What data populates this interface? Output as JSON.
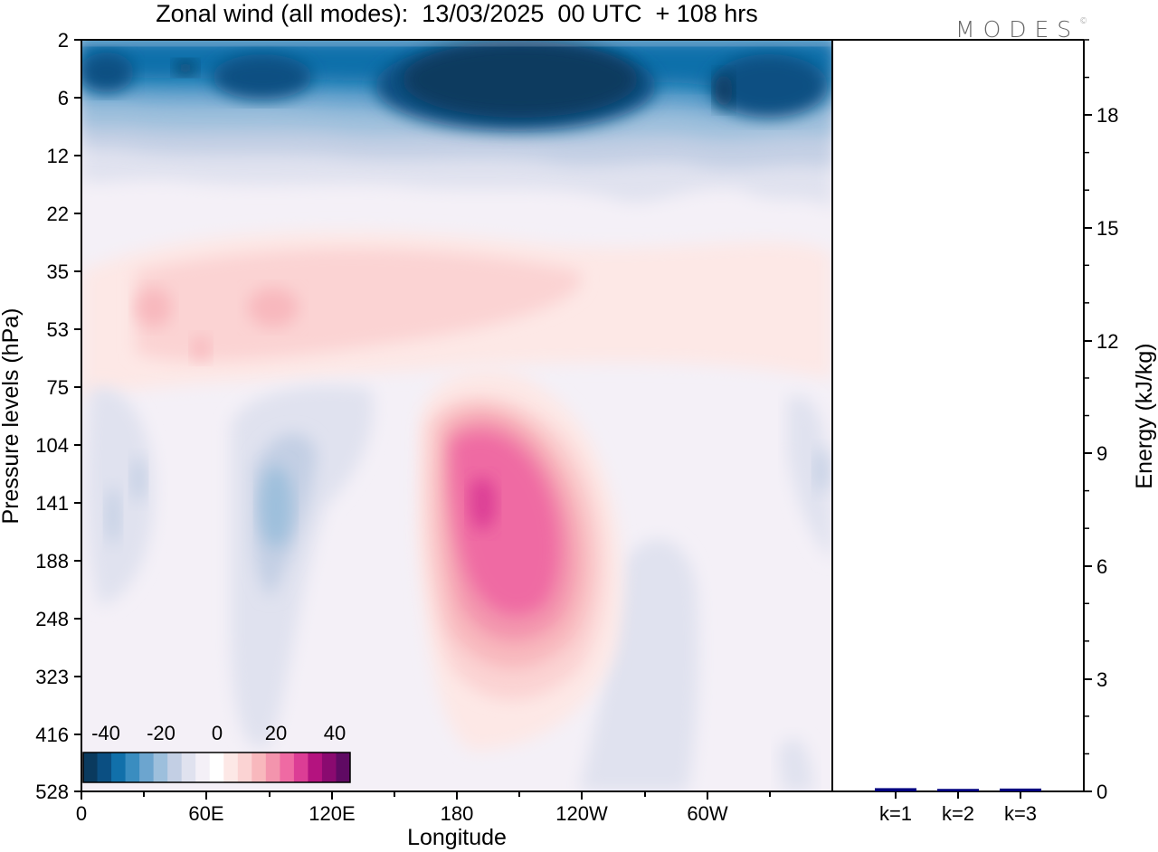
{
  "header": {
    "title": "Zonal wind (all modes):  13/03/2025  00 UTC  + 108 hrs",
    "logo": "MODES",
    "logo_mark": "©"
  },
  "chart_data": [
    {
      "type": "heatmap",
      "title": "Zonal wind (all modes):  13/03/2025  00 UTC  + 108 hrs",
      "xlabel": "Longitude",
      "ylabel": "Pressure levels (hPa)",
      "x_ticks": [
        "0",
        "60E",
        "120E",
        "180",
        "120W",
        "60W"
      ],
      "x_tick_degrees": [
        0,
        60,
        120,
        180,
        240,
        300
      ],
      "xlim_degrees": [
        0,
        360
      ],
      "y_ticks": [
        "2",
        "6",
        "12",
        "22",
        "35",
        "53",
        "75",
        "104",
        "141",
        "188",
        "248",
        "323",
        "416",
        "528"
      ],
      "colorbar": {
        "tick_labels": [
          "-40",
          "-20",
          "0",
          "20",
          "40"
        ],
        "levels": [
          -45,
          -40,
          -35,
          -30,
          -25,
          -20,
          -15,
          -10,
          -5,
          0,
          5,
          10,
          15,
          20,
          25,
          30,
          35,
          40,
          45
        ],
        "colors": [
          "#0a3a5e",
          "#0b4f82",
          "#1170aa",
          "#3a8dc0",
          "#6ca5cf",
          "#9dbfdc",
          "#c3cfe4",
          "#e0e2ef",
          "#f4f0f7",
          "#ffffff",
          "#fde8e6",
          "#fbd3d3",
          "#f8b8bd",
          "#f394ad",
          "#ef6aa3",
          "#dc3d95",
          "#b4137f",
          "#8a0a70",
          "#5f0a63"
        ]
      },
      "features": [
        {
          "kind": "easterly jet core",
          "pressure_hpa": [
            2,
            10
          ],
          "speed_ms": -45
        },
        {
          "kind": "westerly jet core",
          "longitude": "180",
          "pressure_hpa": [
            104,
            248
          ],
          "speed_ms": 30
        },
        {
          "kind": "weak westerlies",
          "pressure_hpa": [
            25,
            70
          ],
          "speed_ms": 10
        },
        {
          "kind": "weak easterlies",
          "longitude": "60E-120E",
          "pressure_hpa": [
            75,
            323
          ],
          "speed_ms": -15
        }
      ]
    },
    {
      "type": "bar",
      "ylabel": "Energy (kJ/kg)",
      "categories": [
        "k=1",
        "k=2",
        "k=3"
      ],
      "values": [
        0.05,
        0.03,
        0.04
      ],
      "ylim": [
        0,
        20
      ],
      "y_ticks": [
        0,
        3,
        6,
        9,
        12,
        15,
        18
      ],
      "bar_color": "#000080"
    }
  ]
}
